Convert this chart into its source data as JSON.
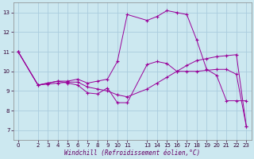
{
  "xlabel": "Windchill (Refroidissement éolien,°C)",
  "bg_color": "#cce8f0",
  "line_color": "#990099",
  "grid_color": "#aaccdd",
  "ylim": [
    6.5,
    13.5
  ],
  "xlim": [
    -0.5,
    23.5
  ],
  "yticks": [
    7,
    8,
    9,
    10,
    11,
    12,
    13
  ],
  "xticks": [
    0,
    2,
    3,
    4,
    5,
    6,
    7,
    8,
    9,
    10,
    11,
    13,
    14,
    15,
    16,
    17,
    18,
    19,
    20,
    21,
    22,
    23
  ],
  "line1_x": [
    0,
    2,
    3,
    4,
    5,
    6,
    7,
    8,
    9,
    10,
    11,
    13,
    14,
    15,
    16,
    17,
    18,
    19,
    20,
    21,
    22,
    23
  ],
  "line1_y": [
    11.0,
    9.3,
    9.4,
    9.5,
    9.5,
    9.6,
    9.4,
    9.5,
    9.6,
    10.5,
    12.9,
    12.6,
    12.8,
    13.1,
    13.0,
    12.9,
    11.6,
    10.1,
    9.8,
    8.5,
    8.5,
    8.5
  ],
  "line2_x": [
    0,
    2,
    3,
    4,
    5,
    6,
    7,
    8,
    9,
    10,
    11,
    13,
    14,
    15,
    16,
    17,
    18,
    19,
    20,
    21,
    22,
    23
  ],
  "line2_y": [
    11.0,
    9.3,
    9.4,
    9.5,
    9.4,
    9.3,
    8.9,
    8.85,
    9.15,
    8.4,
    8.4,
    10.35,
    10.5,
    10.4,
    10.0,
    10.0,
    10.0,
    10.05,
    10.1,
    10.1,
    9.85,
    7.2
  ],
  "line3_x": [
    0,
    2,
    3,
    4,
    5,
    6,
    7,
    8,
    9,
    10,
    11,
    13,
    14,
    15,
    16,
    17,
    18,
    19,
    20,
    21,
    22,
    23
  ],
  "line3_y": [
    11.0,
    9.3,
    9.35,
    9.4,
    9.45,
    9.45,
    9.2,
    9.1,
    9.0,
    8.8,
    8.7,
    9.1,
    9.4,
    9.7,
    10.0,
    10.3,
    10.55,
    10.65,
    10.75,
    10.8,
    10.85,
    7.2
  ]
}
